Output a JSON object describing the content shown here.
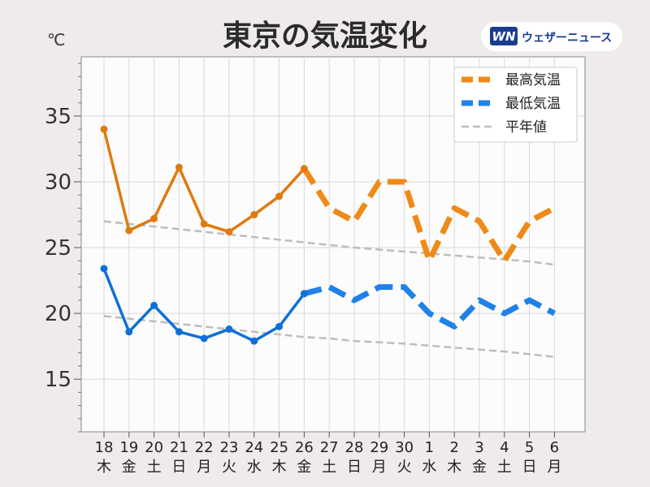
{
  "title": "東京の気温変化",
  "unit_label": "℃",
  "brand": {
    "logo": "WN",
    "name": "ウェザーニュース",
    "logo_color": "#1a3c8c"
  },
  "chart_data": {
    "type": "line",
    "title": "東京の気温変化",
    "ylabel": "℃",
    "ylim": [
      11,
      39.5
    ],
    "yticks": [
      15,
      20,
      25,
      30,
      35
    ],
    "grid": true,
    "legend_position": "top-right",
    "categories": [
      {
        "day": "18",
        "weekday": "木",
        "color": "#222222"
      },
      {
        "day": "19",
        "weekday": "金",
        "color": "#222222"
      },
      {
        "day": "20",
        "weekday": "土",
        "color": "#2b86d9"
      },
      {
        "day": "21",
        "weekday": "日",
        "color": "#e03a3a"
      },
      {
        "day": "22",
        "weekday": "月",
        "color": "#222222"
      },
      {
        "day": "23",
        "weekday": "火",
        "color": "#e03a3a"
      },
      {
        "day": "24",
        "weekday": "水",
        "color": "#222222"
      },
      {
        "day": "25",
        "weekday": "木",
        "color": "#222222"
      },
      {
        "day": "26",
        "weekday": "金",
        "color": "#222222"
      },
      {
        "day": "27",
        "weekday": "土",
        "color": "#2b86d9"
      },
      {
        "day": "28",
        "weekday": "日",
        "color": "#e03a3a"
      },
      {
        "day": "29",
        "weekday": "月",
        "color": "#222222"
      },
      {
        "day": "30",
        "weekday": "火",
        "color": "#222222"
      },
      {
        "day": "1",
        "weekday": "水",
        "color": "#222222"
      },
      {
        "day": "2",
        "weekday": "木",
        "color": "#222222"
      },
      {
        "day": "3",
        "weekday": "金",
        "color": "#222222"
      },
      {
        "day": "4",
        "weekday": "土",
        "color": "#2b86d9"
      },
      {
        "day": "5",
        "weekday": "日",
        "color": "#e03a3a"
      },
      {
        "day": "6",
        "weekday": "月",
        "color": "#222222"
      }
    ],
    "observed_count": 9,
    "series": [
      {
        "name": "最高気温",
        "color": "#ef8a17",
        "line_color": "#e07a10",
        "values": [
          34.0,
          26.3,
          27.2,
          31.1,
          26.8,
          26.2,
          27.5,
          28.9,
          31.0,
          28.0,
          27.0,
          30.0,
          30.0,
          24.0,
          28.0,
          27.0,
          24.0,
          27.0,
          28.0
        ]
      },
      {
        "name": "最低気温",
        "color": "#1f82e8",
        "line_color": "#0f70d8",
        "values": [
          23.4,
          18.6,
          20.6,
          18.6,
          18.1,
          18.8,
          17.9,
          19.0,
          21.5,
          22.0,
          21.0,
          22.0,
          22.0,
          20.0,
          19.0,
          21.0,
          20.0,
          21.0,
          20.0
        ]
      },
      {
        "name": "平年値",
        "color": "#bdbdbd",
        "values_high": [
          27.0,
          26.8,
          26.6,
          26.4,
          26.2,
          26.0,
          25.8,
          25.6,
          25.4,
          25.2,
          25.0,
          24.85,
          24.7,
          24.55,
          24.4,
          24.25,
          24.1,
          23.95,
          23.7
        ],
        "values_low": [
          19.8,
          19.6,
          19.4,
          19.2,
          19.0,
          18.8,
          18.6,
          18.4,
          18.2,
          18.1,
          17.9,
          17.8,
          17.7,
          17.55,
          17.4,
          17.25,
          17.1,
          16.9,
          16.7
        ]
      }
    ]
  }
}
